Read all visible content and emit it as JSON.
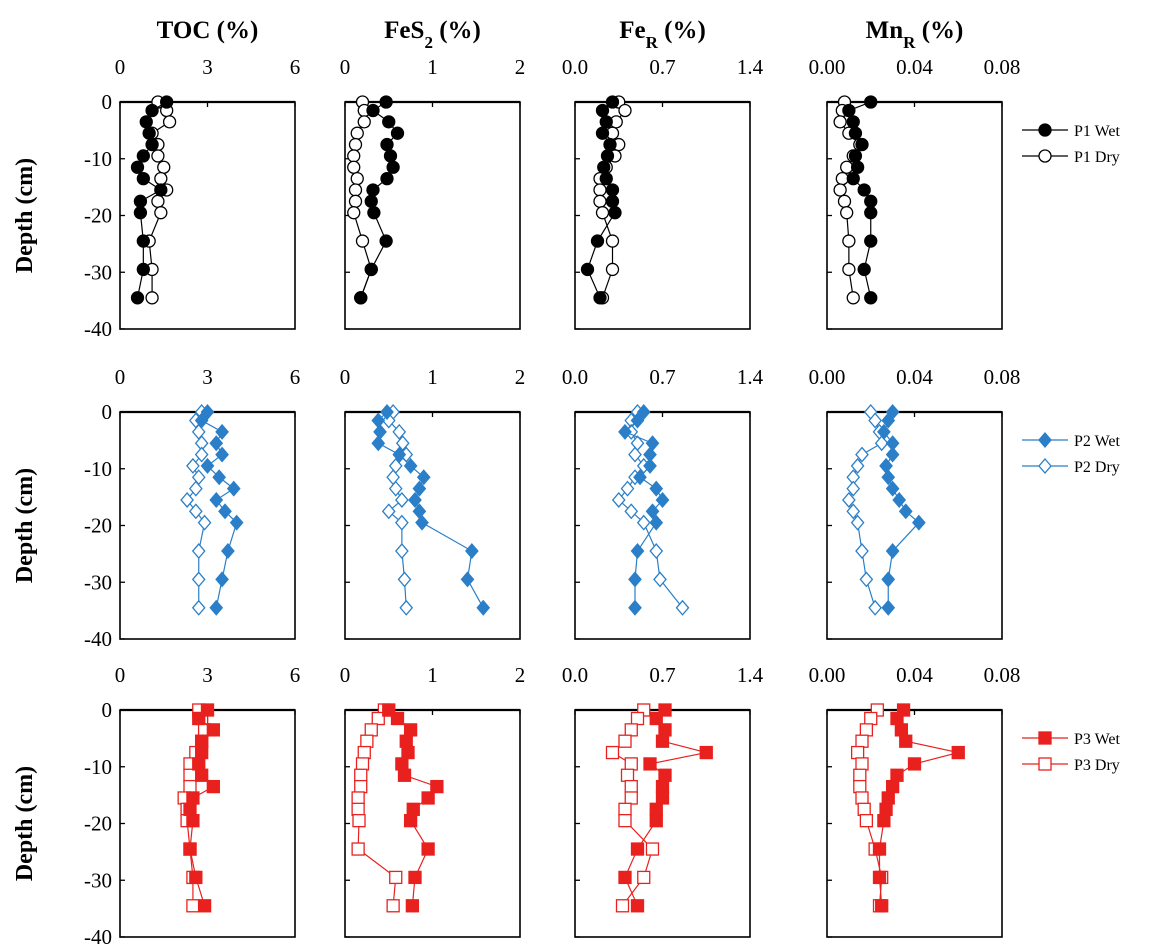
{
  "figure": {
    "y_axis_label": "Depth (cm)",
    "y_ticks": [
      "0",
      "-10",
      "-20",
      "-30",
      "-40"
    ]
  },
  "chart_data": {
    "type": "scatter",
    "depth": [
      0,
      -1.5,
      -3.5,
      -5.5,
      -7.5,
      -9.5,
      -11.5,
      -13.5,
      -15.5,
      -17.5,
      -19.5,
      -24.5,
      -29.5,
      -34.5
    ],
    "ylim": [
      -40,
      0
    ],
    "columns": [
      {
        "id": "toc",
        "title": "TOC (%)",
        "title_sub": "",
        "title_suffix": " (%)",
        "title_main": "TOC",
        "xlim": [
          0,
          6
        ],
        "xticks": [
          "0",
          "3",
          "6"
        ]
      },
      {
        "id": "fes2",
        "title": "FeS2 (%)",
        "title_main": "FeS",
        "title_sub": "2",
        "title_suffix": " (%)",
        "xlim": [
          0,
          2
        ],
        "xticks": [
          "0",
          "1",
          "2"
        ]
      },
      {
        "id": "fer",
        "title": "FeR (%)",
        "title_main": "Fe",
        "title_sub": "R",
        "title_suffix": " (%)",
        "xlim": [
          0,
          1.4
        ],
        "xticks": [
          "0.0",
          "0.7",
          "1.4"
        ]
      },
      {
        "id": "mnr",
        "title": "MnR (%)",
        "title_main": "Mn",
        "title_sub": "R",
        "title_suffix": " (%)",
        "xlim": [
          0,
          0.08
        ],
        "xticks": [
          "0.00",
          "0.04",
          "0.08"
        ]
      }
    ],
    "rows": [
      {
        "id": "p1",
        "color": "#000000",
        "marker": "circle",
        "series": [
          {
            "name": "P1 Wet",
            "filled": true,
            "toc": [
              1.6,
              1.1,
              0.9,
              1.0,
              1.1,
              0.8,
              0.6,
              0.8,
              1.4,
              0.7,
              0.7,
              0.8,
              0.8,
              0.6
            ],
            "fes2": [
              0.47,
              0.32,
              0.5,
              0.6,
              0.48,
              0.52,
              0.55,
              0.48,
              0.32,
              0.3,
              0.33,
              0.47,
              0.3,
              0.18
            ],
            "fer": [
              0.3,
              0.22,
              0.25,
              0.22,
              0.28,
              0.26,
              0.23,
              0.25,
              0.3,
              0.3,
              0.32,
              0.18,
              0.1,
              0.2
            ],
            "mnr": [
              0.02,
              0.01,
              0.012,
              0.013,
              0.016,
              0.013,
              0.014,
              0.012,
              0.017,
              0.02,
              0.02,
              0.02,
              0.017,
              0.02
            ]
          },
          {
            "name": "P1 Dry",
            "filled": false,
            "toc": [
              1.3,
              1.6,
              1.7,
              1.1,
              1.3,
              1.3,
              1.5,
              1.4,
              1.6,
              1.3,
              1.4,
              1.0,
              1.1,
              1.1
            ],
            "fes2": [
              0.2,
              0.22,
              0.22,
              0.14,
              0.12,
              0.1,
              0.1,
              0.14,
              0.12,
              0.12,
              0.1,
              0.2,
              0.3,
              0.18
            ],
            "fer": [
              0.35,
              0.4,
              0.33,
              0.3,
              0.35,
              0.32,
              0.25,
              0.2,
              0.2,
              0.2,
              0.22,
              0.3,
              0.3,
              0.22
            ],
            "mnr": [
              0.008,
              0.007,
              0.006,
              0.01,
              0.015,
              0.012,
              0.009,
              0.007,
              0.006,
              0.008,
              0.009,
              0.01,
              0.01,
              0.012
            ]
          }
        ]
      },
      {
        "id": "p2",
        "color": "#2a7fc8",
        "marker": "diamond",
        "series": [
          {
            "name": "P2 Wet",
            "filled": true,
            "toc": [
              3.0,
              2.8,
              3.5,
              3.3,
              3.5,
              3.0,
              3.4,
              3.9,
              3.3,
              3.6,
              4.0,
              3.7,
              3.5,
              3.3
            ],
            "fes2": [
              0.48,
              0.38,
              0.4,
              0.38,
              0.62,
              0.75,
              0.9,
              0.85,
              0.8,
              0.85,
              0.88,
              1.45,
              1.4,
              1.58
            ],
            "fer": [
              0.55,
              0.5,
              0.4,
              0.62,
              0.6,
              0.6,
              0.52,
              0.65,
              0.7,
              0.62,
              0.65,
              0.5,
              0.48,
              0.48
            ],
            "mnr": [
              0.03,
              0.028,
              0.026,
              0.03,
              0.03,
              0.027,
              0.028,
              0.03,
              0.033,
              0.036,
              0.042,
              0.03,
              0.028,
              0.028
            ]
          },
          {
            "name": "P2 Dry",
            "filled": false,
            "toc": [
              2.8,
              2.6,
              2.7,
              2.8,
              2.8,
              2.5,
              2.7,
              2.6,
              2.3,
              2.6,
              2.9,
              2.7,
              2.7,
              2.7
            ],
            "fes2": [
              0.55,
              0.5,
              0.62,
              0.66,
              0.7,
              0.58,
              0.55,
              0.58,
              0.65,
              0.5,
              0.65,
              0.65,
              0.68,
              0.7
            ],
            "fer": [
              0.5,
              0.45,
              0.45,
              0.5,
              0.48,
              0.55,
              0.48,
              0.42,
              0.35,
              0.45,
              0.55,
              0.65,
              0.68,
              0.86
            ],
            "mnr": [
              0.02,
              0.022,
              0.024,
              0.025,
              0.016,
              0.014,
              0.012,
              0.012,
              0.01,
              0.012,
              0.014,
              0.016,
              0.018,
              0.022
            ]
          }
        ]
      },
      {
        "id": "p3",
        "color": "#e8211e",
        "marker": "square",
        "series": [
          {
            "name": "P3 Wet",
            "filled": true,
            "toc": [
              3.0,
              2.7,
              3.2,
              2.8,
              2.8,
              2.7,
              2.8,
              3.2,
              2.5,
              2.4,
              2.5,
              2.4,
              2.6,
              2.9
            ],
            "fes2": [
              0.5,
              0.6,
              0.75,
              0.7,
              0.72,
              0.65,
              0.68,
              1.05,
              0.95,
              0.78,
              0.75,
              0.95,
              0.8,
              0.77
            ],
            "fer": [
              0.72,
              0.65,
              0.72,
              0.7,
              1.05,
              0.6,
              0.72,
              0.7,
              0.7,
              0.65,
              0.65,
              0.5,
              0.4,
              0.5
            ],
            "mnr": [
              0.035,
              0.032,
              0.034,
              0.036,
              0.06,
              0.04,
              0.032,
              0.03,
              0.028,
              0.027,
              0.026,
              0.024,
              0.024,
              0.025
            ]
          },
          {
            "name": "P3 Dry",
            "filled": false,
            "toc": [
              2.7,
              2.8,
              2.9,
              2.8,
              2.6,
              2.4,
              2.4,
              2.4,
              2.2,
              2.3,
              2.3,
              2.4,
              2.5,
              2.5
            ],
            "fes2": [
              0.45,
              0.38,
              0.3,
              0.25,
              0.22,
              0.2,
              0.18,
              0.18,
              0.15,
              0.15,
              0.16,
              0.15,
              0.58,
              0.55
            ],
            "fer": [
              0.55,
              0.5,
              0.45,
              0.4,
              0.3,
              0.45,
              0.42,
              0.45,
              0.45,
              0.4,
              0.4,
              0.62,
              0.55,
              0.38
            ],
            "mnr": [
              0.023,
              0.02,
              0.018,
              0.016,
              0.014,
              0.016,
              0.015,
              0.015,
              0.016,
              0.017,
              0.018,
              0.022,
              0.025,
              0.024
            ]
          }
        ]
      }
    ]
  }
}
